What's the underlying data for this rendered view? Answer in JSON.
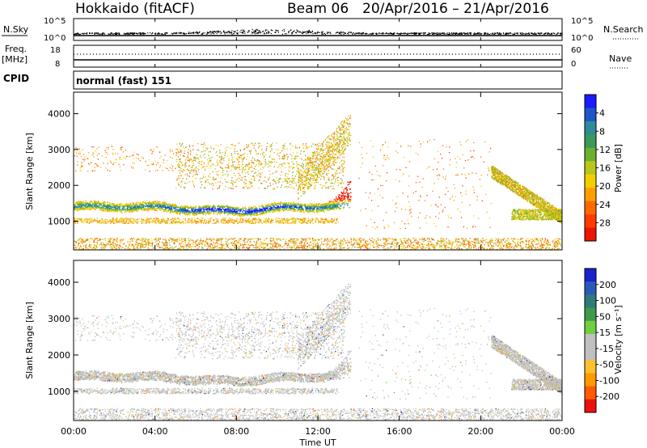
{
  "chart_data": [
    {
      "type": "header",
      "title_left": "Hokkaido (fitACF)",
      "beam": "Beam 06",
      "date_range": "20/Apr/2016 – 21/Apr/2016",
      "nsky": {
        "label": "N.Sky",
        "ytick_top": "10^5",
        "ytick_bottom": "10^0",
        "right_label": "N.Search",
        "right_tick_top": "10^5",
        "right_tick_bottom": "10^0"
      },
      "freq": {
        "label_line1": "Freq.",
        "label_line2": "[MHz]",
        "ytick_top": "18",
        "ytick_bottom": "8",
        "right_label": "Nave",
        "right_tick_top": "60",
        "right_tick_bottom": "0"
      },
      "cpid": {
        "label": "CPID",
        "value": "normal (fast) 151"
      }
    },
    {
      "type": "heatmap",
      "ylabel": "Slant Range [km]",
      "ylim": [
        200,
        4600
      ],
      "yticks": [
        "1000",
        "2000",
        "3000",
        "4000"
      ],
      "colorbar": {
        "label": "Power [dB]",
        "ticks": [
          "4",
          "8",
          "12",
          "16",
          "20",
          "24",
          "28"
        ],
        "colors": [
          "#1a1aff",
          "#1f55c8",
          "#2f8a9a",
          "#3a9a5a",
          "#6cb030",
          "#b8c818",
          "#f2d000",
          "#ffa000",
          "#ff6a00",
          "#ff3a00",
          "#ee1500"
        ]
      }
    },
    {
      "type": "heatmap",
      "ylabel": "Slant Range [km]",
      "ylim": [
        200,
        4600
      ],
      "yticks": [
        "1000",
        "2000",
        "3000",
        "4000"
      ],
      "colorbar": {
        "label": "Velocity [m s⁻¹]",
        "ticks": [
          "200",
          "100",
          "50",
          "15",
          "-15",
          "-50",
          "-100",
          "-200"
        ],
        "colors": [
          "#1a22cc",
          "#2a5ab8",
          "#2f7a7a",
          "#3f9a4a",
          "#6ed040",
          "#c0c0c0",
          "#c0c0c0",
          "#ffc030",
          "#ff9a00",
          "#ff5a00",
          "#ee1010"
        ]
      },
      "xlabel": "Time UT",
      "xticks": [
        "00:00",
        "04:00",
        "08:00",
        "12:00",
        "16:00",
        "20:00",
        "00:00"
      ]
    }
  ]
}
